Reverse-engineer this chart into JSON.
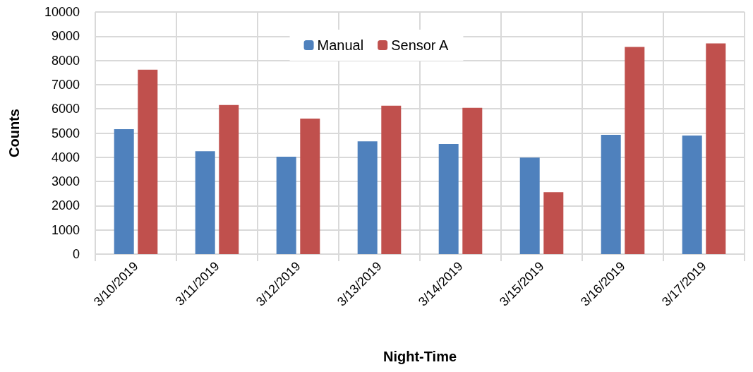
{
  "chart_data": {
    "type": "bar",
    "xlabel": "Night-Time",
    "ylabel": "Counts",
    "categories": [
      "3/10/2019",
      "3/11/2019",
      "3/12/2019",
      "3/13/2019",
      "3/14/2019",
      "3/15/2019",
      "3/16/2019",
      "3/17/2019"
    ],
    "series": [
      {
        "name": "Manual",
        "color": "#4f81bd",
        "values": [
          5160,
          4250,
          4020,
          4660,
          4550,
          3990,
          4930,
          4900
        ]
      },
      {
        "name": "Sensor A",
        "color": "#c0504d",
        "values": [
          7620,
          6160,
          5600,
          6130,
          6040,
          2560,
          8560,
          8700
        ]
      }
    ],
    "ylim": [
      0,
      10000
    ],
    "yticks": [
      0,
      1000,
      2000,
      3000,
      4000,
      5000,
      6000,
      7000,
      8000,
      9000,
      10000
    ],
    "grid": true,
    "legend": "top"
  }
}
